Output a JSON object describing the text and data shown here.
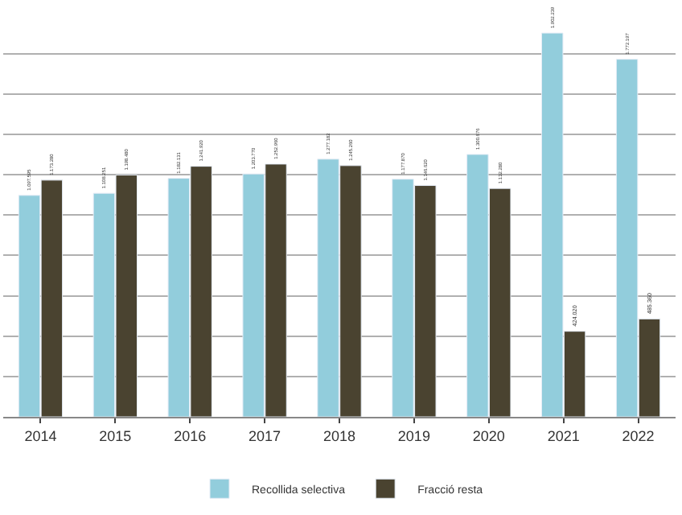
{
  "chart_data": {
    "type": "bar",
    "categories": [
      "2014",
      "2015",
      "2016",
      "2017",
      "2018",
      "2019",
      "2020",
      "2021",
      "2022"
    ],
    "series": [
      {
        "name": "Recollida selectiva",
        "color": "#92cddc",
        "values": [
          1097595,
          1108251,
          1182131,
          1203770,
          1277182,
          1177870,
          1300676,
          1902239,
          1772197
        ],
        "value_labels": [
          "1.097.595",
          "1.108.251",
          "1.182.131",
          "1.203.770",
          "1.277.182",
          "1.177.870",
          "1.300.676",
          "1.902.239",
          "1.772.197"
        ]
      },
      {
        "name": "Fracció resta",
        "color": "#4a4330",
        "values": [
          1173280,
          1198480,
          1241920,
          1252960,
          1245260,
          1146620,
          1132280,
          424020,
          485360
        ],
        "value_labels": [
          "1.173.280",
          "1.198.480",
          "1.241.920",
          "1.252.960",
          "1.245.260",
          "1.146.620",
          "1.132.280",
          "424.020",
          "485.360"
        ]
      }
    ],
    "tick_labels": "x",
    "grid": "y",
    "legend": "bottom"
  }
}
